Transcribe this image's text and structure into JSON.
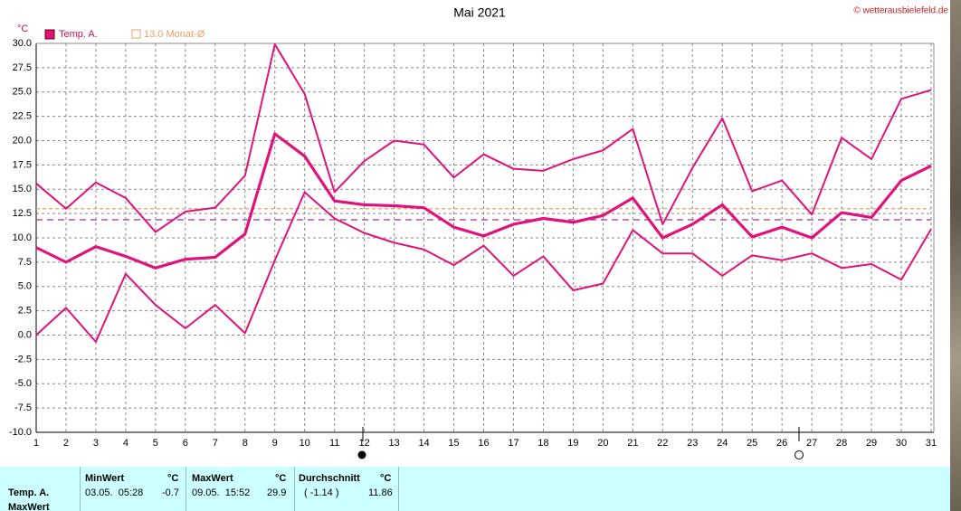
{
  "chart_data": {
    "type": "line",
    "title": "Mai 2021",
    "credit": "© wetterausbielefeld.de",
    "y_unit": "°C",
    "x": [
      1,
      2,
      3,
      4,
      5,
      6,
      7,
      8,
      9,
      10,
      11,
      12,
      13,
      14,
      15,
      16,
      17,
      18,
      19,
      20,
      21,
      22,
      23,
      24,
      25,
      26,
      27,
      28,
      29,
      30,
      31
    ],
    "xlim": [
      1,
      31
    ],
    "xticks": [
      1,
      2,
      3,
      4,
      5,
      6,
      7,
      8,
      9,
      10,
      11,
      12,
      13,
      14,
      15,
      16,
      17,
      18,
      19,
      20,
      21,
      22,
      23,
      24,
      25,
      26,
      27,
      28,
      29,
      30,
      31
    ],
    "ylim": [
      -10,
      30
    ],
    "yticks": [
      {
        "value": -10,
        "label": "-10.0"
      },
      {
        "value": -7.5,
        "label": "-7.5"
      },
      {
        "value": -5,
        "label": "-5.0"
      },
      {
        "value": -2.5,
        "label": "-2.5"
      },
      {
        "value": 0,
        "label": "0.0"
      },
      {
        "value": 2.5,
        "label": "2.5"
      },
      {
        "value": 5,
        "label": "5.0"
      },
      {
        "value": 7.5,
        "label": "7.5"
      },
      {
        "value": 10,
        "label": "10.0"
      },
      {
        "value": 12.5,
        "label": "12.5"
      },
      {
        "value": 15,
        "label": "15.0"
      },
      {
        "value": 17.5,
        "label": "17.5"
      },
      {
        "value": 20,
        "label": "20.0"
      },
      {
        "value": 22.5,
        "label": "22.5"
      },
      {
        "value": 25,
        "label": "25.0"
      },
      {
        "value": 27.5,
        "label": "27.5"
      },
      {
        "value": 30,
        "label": "30.0"
      }
    ],
    "grid": true,
    "series": [
      {
        "name": "Temp. A.",
        "color": "#e0137c",
        "values": [
          9.0,
          7.5,
          9.1,
          8.1,
          6.9,
          7.8,
          8.0,
          10.4,
          20.7,
          18.4,
          13.8,
          13.4,
          13.3,
          13.1,
          11.1,
          10.2,
          11.4,
          12.0,
          11.6,
          12.3,
          14.1,
          10.0,
          11.4,
          13.4,
          10.1,
          11.1,
          10.0,
          12.6,
          12.1,
          15.9,
          17.4
        ],
        "max_values": [
          15.6,
          13.0,
          15.7,
          14.1,
          10.6,
          12.7,
          13.1,
          16.4,
          29.9,
          24.8,
          14.7,
          17.9,
          20.0,
          19.6,
          16.2,
          18.6,
          17.1,
          16.9,
          18.1,
          19.0,
          21.2,
          11.4,
          17.2,
          22.3,
          14.8,
          15.9,
          12.4,
          20.3,
          18.1,
          24.3,
          25.2
        ],
        "min_values": [
          0.0,
          2.8,
          -0.7,
          6.3,
          3.1,
          0.7,
          3.1,
          0.2,
          7.7,
          14.7,
          12.0,
          10.5,
          9.5,
          8.8,
          7.2,
          9.2,
          6.1,
          8.1,
          4.6,
          5.3,
          10.8,
          8.4,
          8.4,
          6.1,
          8.2,
          7.7,
          8.4,
          6.9,
          7.3,
          5.7,
          10.9
        ]
      }
    ],
    "reference_lines": [
      {
        "name": "13.0 Monat-Ø",
        "value": 13.0,
        "color": "#e8a060"
      },
      {
        "value": 11.86,
        "color": "#a0309a"
      }
    ]
  },
  "table": {
    "headers": [
      "MinWert",
      "°C",
      "MaxWert",
      "°C",
      "Durchschnitt",
      "°C"
    ],
    "rows": [
      [
        "Temp. A.",
        "03.05.  05:28",
        "-0.7",
        "09.05.  15:52",
        "29.9",
        "( -1.14 )",
        "11.86"
      ],
      [
        "MaxWert"
      ]
    ]
  }
}
